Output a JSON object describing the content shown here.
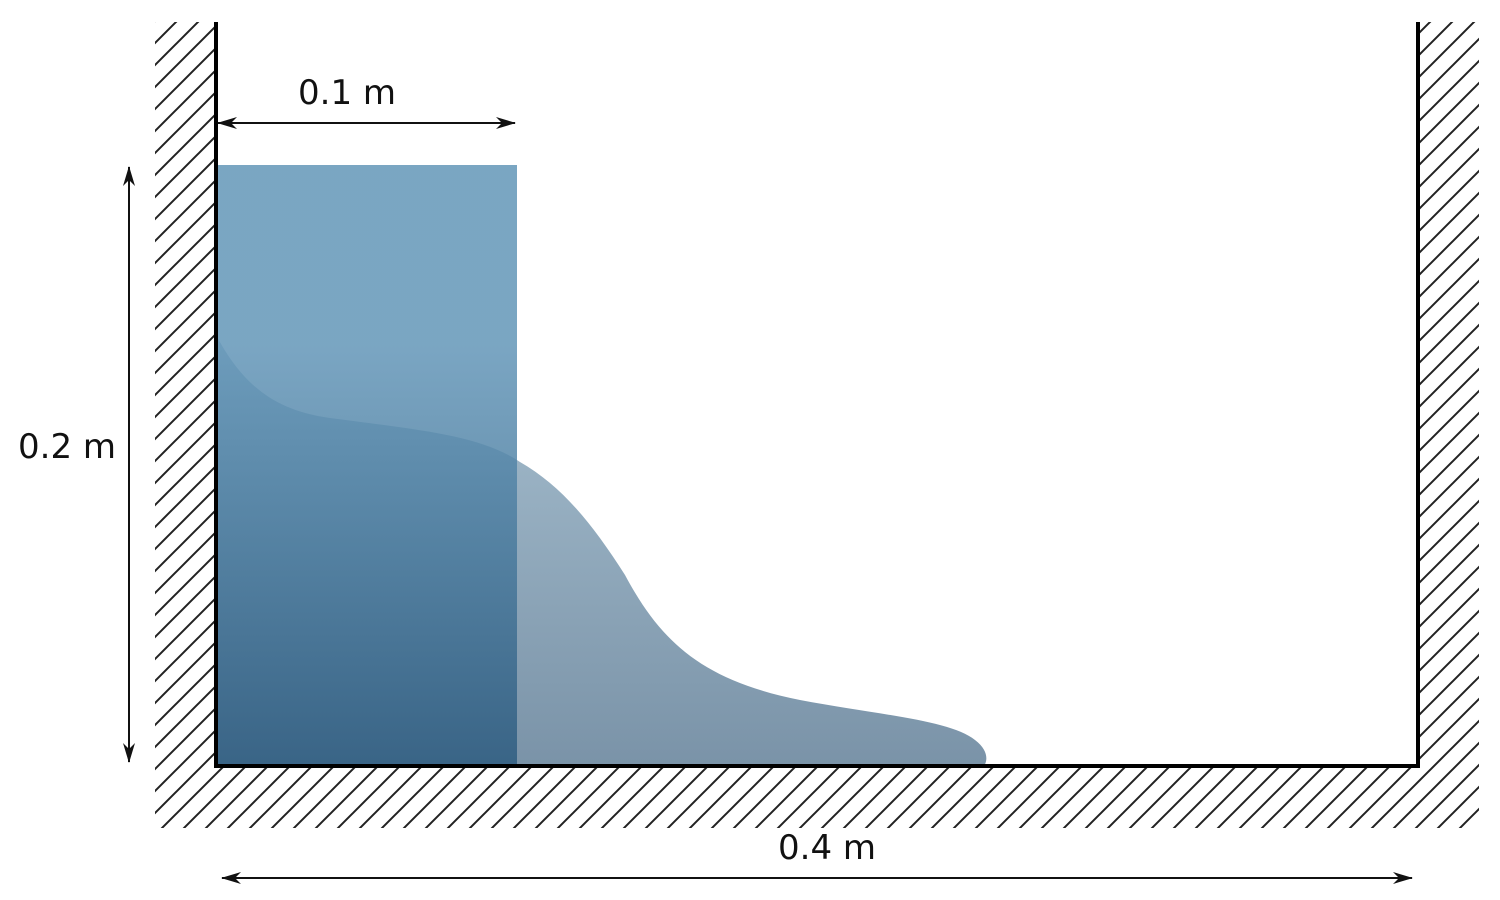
{
  "diagram": {
    "dimensions": {
      "column_width": "0.1 m",
      "column_height": "0.2 m",
      "tank_length": "0.4 m"
    },
    "colors": {
      "initial_water_top": "#6396b8",
      "initial_water_bottom": "#2e5c80",
      "flowing_water_top": "#a7bfcf",
      "flowing_water_bottom": "#7a93a8",
      "wall": "#000000",
      "hatch": "#222222"
    }
  }
}
